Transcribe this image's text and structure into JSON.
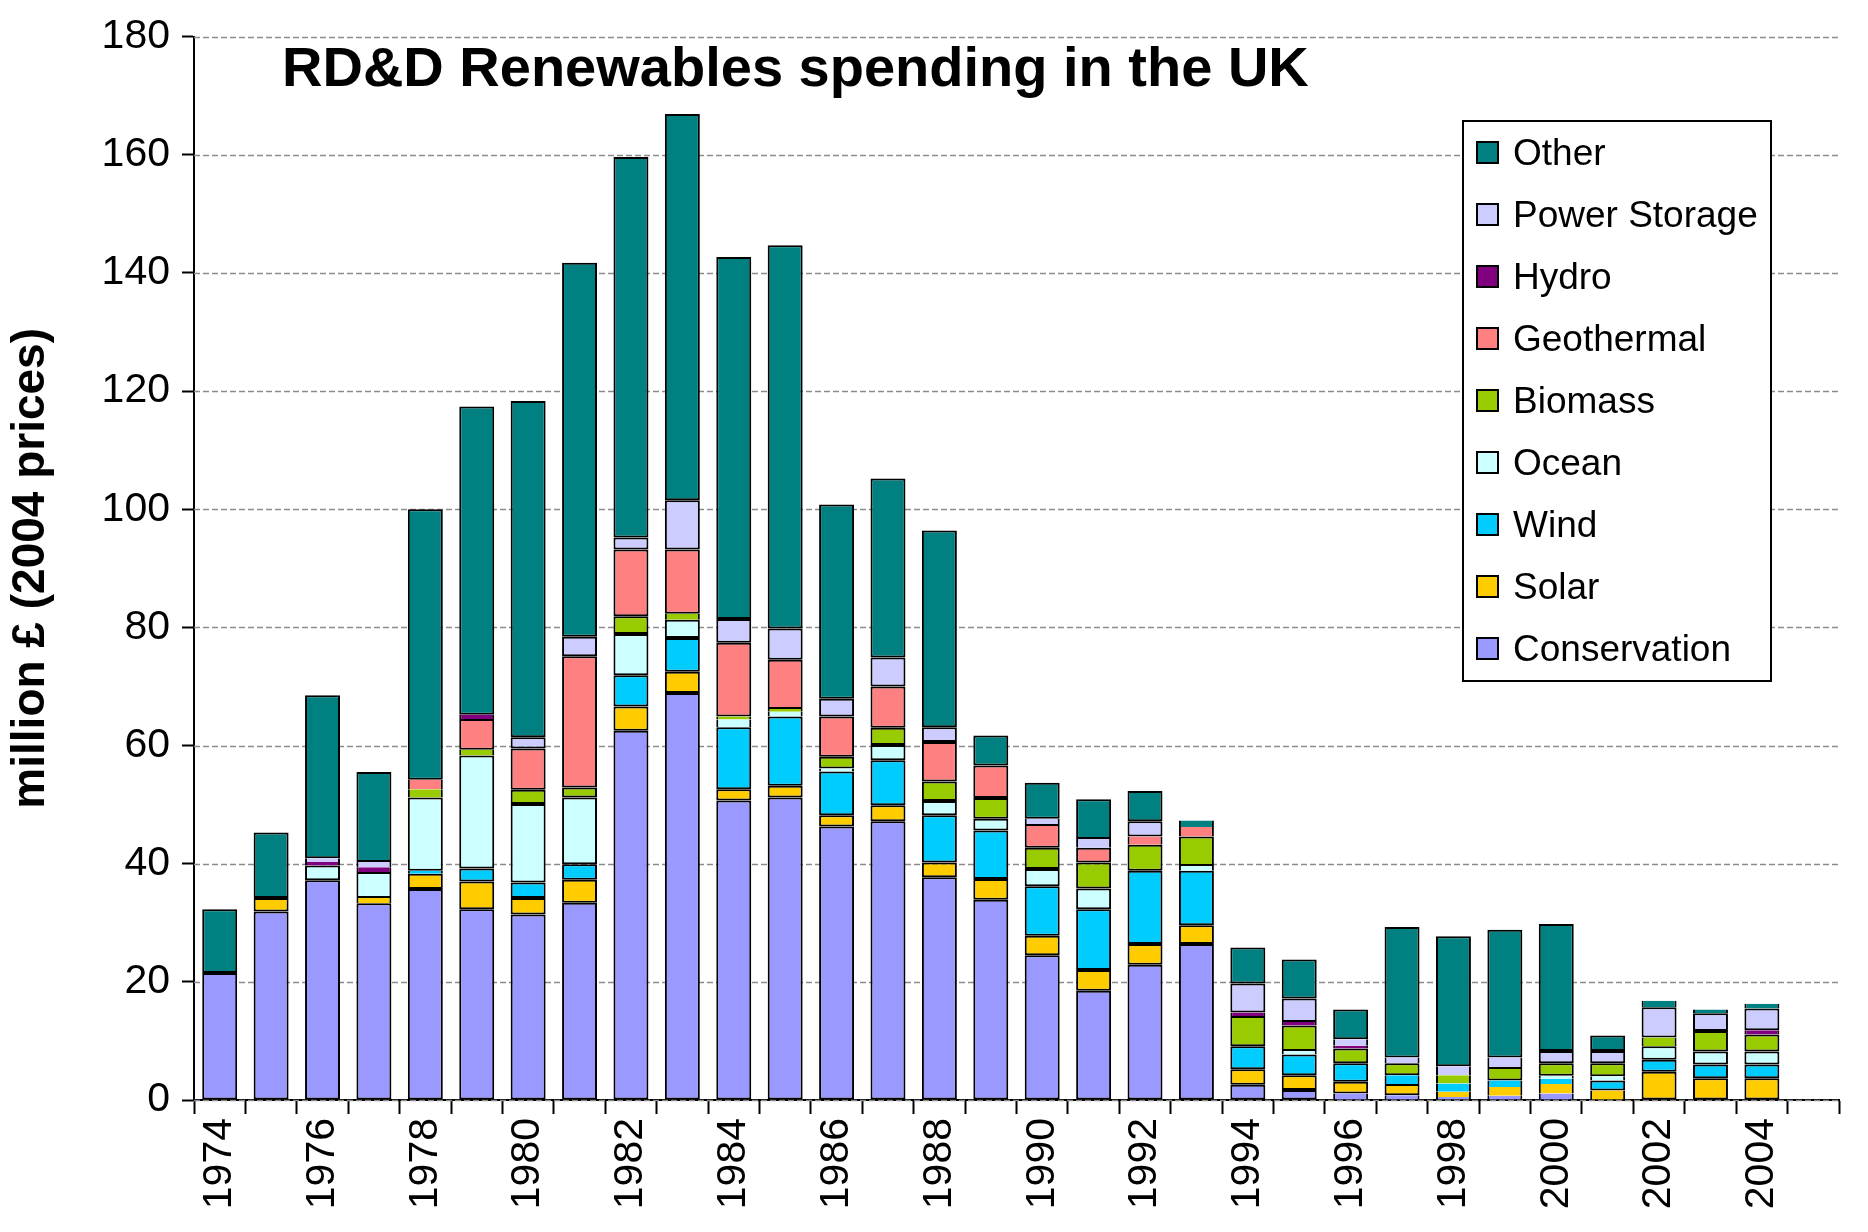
{
  "chart_data": {
    "type": "bar",
    "title": "RD&D Renewables spending in the UK",
    "ylabel": "million £ (2004 prices)",
    "stacked": true,
    "grid": "y",
    "legend": "top right",
    "ylim": [
      0,
      180
    ],
    "yticks": [
      0,
      20,
      40,
      60,
      80,
      100,
      120,
      140,
      160,
      180
    ],
    "categories": [
      "1974",
      null,
      "1976",
      null,
      "1978",
      null,
      "1980",
      null,
      "1982",
      null,
      "1984",
      null,
      "1986",
      null,
      "1988",
      null,
      "1990",
      null,
      "1992",
      null,
      "1994",
      null,
      "1996",
      null,
      "1998",
      null,
      "2000",
      null,
      "2002",
      null,
      "2004",
      null
    ],
    "series": [
      {
        "name": "Conservation",
        "color": "#9999ff",
        "values": [
          21.5,
          31.9,
          37.2,
          33.3,
          35.7,
          32.3,
          31.4,
          33.4,
          62.5,
          68.9,
          50.7,
          51.2,
          46.3,
          47.2,
          37.7,
          33.9,
          24.5,
          18.5,
          22.9,
          26.4,
          2.6,
          1.7,
          1.1,
          0.8,
          0.5,
          0.7,
          1.1,
          null,
          null,
          null,
          null,
          null
        ]
      },
      {
        "name": "Solar",
        "color": "#ffcc00",
        "values": [
          null,
          2.3,
          null,
          0.9,
          2.6,
          4.7,
          2.8,
          3.9,
          4.1,
          3.6,
          1.9,
          2.0,
          1.9,
          2.7,
          2.5,
          3.5,
          3.3,
          3.5,
          3.5,
          3.2,
          2.6,
          2.5,
          2.0,
          1.9,
          0.9,
          1.5,
          1.6,
          1.6,
          4.8,
          3.7,
          3.7,
          null
        ]
      },
      {
        "name": "Wind",
        "color": "#00ccff",
        "values": [
          null,
          null,
          null,
          null,
          0.5,
          2.2,
          2.6,
          2.6,
          5.3,
          5.7,
          10.5,
          11.7,
          7.4,
          7.6,
          8.0,
          8.2,
          8.4,
          10.3,
          12.4,
          9.2,
          3.9,
          3.5,
          3.1,
          1.5,
          1.4,
          1.1,
          0.9,
          1.7,
          2.0,
          2.3,
          2.3,
          null
        ]
      },
      {
        "name": "Ocean",
        "color": "#ccffff",
        "values": [
          null,
          null,
          2.5,
          4.4,
          12.4,
          19.1,
          13.3,
          11.3,
          7.0,
          3.1,
          1.3,
          0.8,
          0.5,
          2.6,
          2.4,
          2.0,
          2.9,
          3.5,
          null,
          0.8,
          null,
          0.6,
          null,
          null,
          null,
          null,
          0.5,
          0.7,
          2.3,
          2.2,
          2.2,
          null
        ]
      },
      {
        "name": "Biomass",
        "color": "#99cc00",
        "values": [
          null,
          null,
          null,
          null,
          1.4,
          1.0,
          2.4,
          1.7,
          3.0,
          1.0,
          0.5,
          0.5,
          2.0,
          2.9,
          3.3,
          3.5,
          3.6,
          4.4,
          4.4,
          5.0,
          5.1,
          4.3,
          2.5,
          2.0,
          1.4,
          2.3,
          2.1,
          2.2,
          1.5,
          3.5,
          2.9,
          null
        ]
      },
      {
        "name": "Geothermal",
        "color": "#ff8080",
        "values": [
          null,
          null,
          null,
          null,
          1.6,
          5.2,
          7.0,
          22.2,
          11.3,
          10.9,
          12.5,
          8.3,
          6.8,
          7.0,
          6.7,
          5.5,
          4.0,
          2.5,
          1.4,
          1.6,
          null,
          null,
          null,
          null,
          null,
          null,
          null,
          null,
          null,
          null,
          null,
          null
        ]
      },
      {
        "name": "Hydro",
        "color": "#800080",
        "values": [
          null,
          null,
          0.6,
          0.8,
          null,
          0.7,
          null,
          null,
          null,
          null,
          null,
          null,
          null,
          null,
          null,
          null,
          null,
          null,
          null,
          null,
          0.6,
          0.6,
          0.5,
          null,
          null,
          null,
          null,
          null,
          null,
          null,
          0.7,
          null
        ]
      },
      {
        "name": "Power Storage",
        "color": "#ccccff",
        "values": [
          null,
          null,
          0.6,
          0.9,
          null,
          null,
          1.9,
          3.3,
          2.0,
          8.3,
          4.0,
          5.3,
          3.0,
          4.9,
          2.5,
          null,
          0.9,
          1.5,
          2.6,
          null,
          4.9,
          4.0,
          1.1,
          1.0,
          1.5,
          1.6,
          2.1,
          2.1,
          5.1,
          3.0,
          3.7,
          null
        ]
      },
      {
        "name": "Other",
        "color": "#008080",
        "values": [
          10.8,
          11.1,
          27.6,
          15.2,
          45.8,
          52.2,
          56.9,
          63.3,
          64.4,
          65.4,
          61.3,
          64.9,
          32.9,
          30.3,
          33.3,
          5.1,
          6.1,
          6.7,
          5.1,
          1.1,
          6.1,
          6.6,
          5.0,
          22.1,
          22.0,
          21.6,
          21.5,
          2.6,
          1.1,
          0.6,
          0.8,
          null
        ]
      }
    ]
  }
}
